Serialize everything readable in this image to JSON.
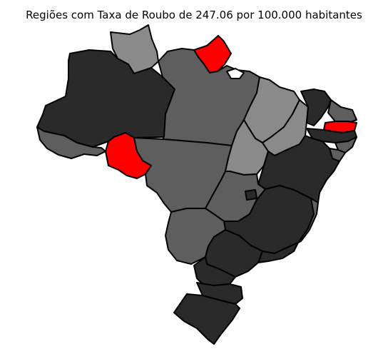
{
  "title": "Regiões com Taxa de Roubo de 247.06 por 100.000 habitantes",
  "colors": {
    "background": "#ffffff",
    "highlight": "#ff0000",
    "dark": "#2a2a2a",
    "medium": "#5e5e5e",
    "light": "#8a8a8a",
    "border": "#000000"
  },
  "regions": [
    {
      "id": "AM",
      "shade": "dark"
    },
    {
      "id": "RR",
      "shade": "light"
    },
    {
      "id": "AP",
      "shade": "highlight"
    },
    {
      "id": "PA",
      "shade": "medium"
    },
    {
      "id": "AC",
      "shade": "medium"
    },
    {
      "id": "RO",
      "shade": "highlight"
    },
    {
      "id": "MT",
      "shade": "medium"
    },
    {
      "id": "MA",
      "shade": "light"
    },
    {
      "id": "PI",
      "shade": "light"
    },
    {
      "id": "CE",
      "shade": "dark"
    },
    {
      "id": "RN",
      "shade": "medium"
    },
    {
      "id": "PB",
      "shade": "highlight"
    },
    {
      "id": "PE",
      "shade": "dark"
    },
    {
      "id": "AL",
      "shade": "medium"
    },
    {
      "id": "SE",
      "shade": "medium"
    },
    {
      "id": "TO",
      "shade": "light"
    },
    {
      "id": "BA",
      "shade": "dark"
    },
    {
      "id": "GO",
      "shade": "medium"
    },
    {
      "id": "DF",
      "shade": "dark"
    },
    {
      "id": "MG",
      "shade": "dark"
    },
    {
      "id": "ES",
      "shade": "medium"
    },
    {
      "id": "MS",
      "shade": "medium"
    },
    {
      "id": "SP",
      "shade": "dark"
    },
    {
      "id": "RJ",
      "shade": "dark"
    },
    {
      "id": "PR",
      "shade": "dark"
    },
    {
      "id": "SC",
      "shade": "dark"
    },
    {
      "id": "RS",
      "shade": "dark"
    }
  ]
}
